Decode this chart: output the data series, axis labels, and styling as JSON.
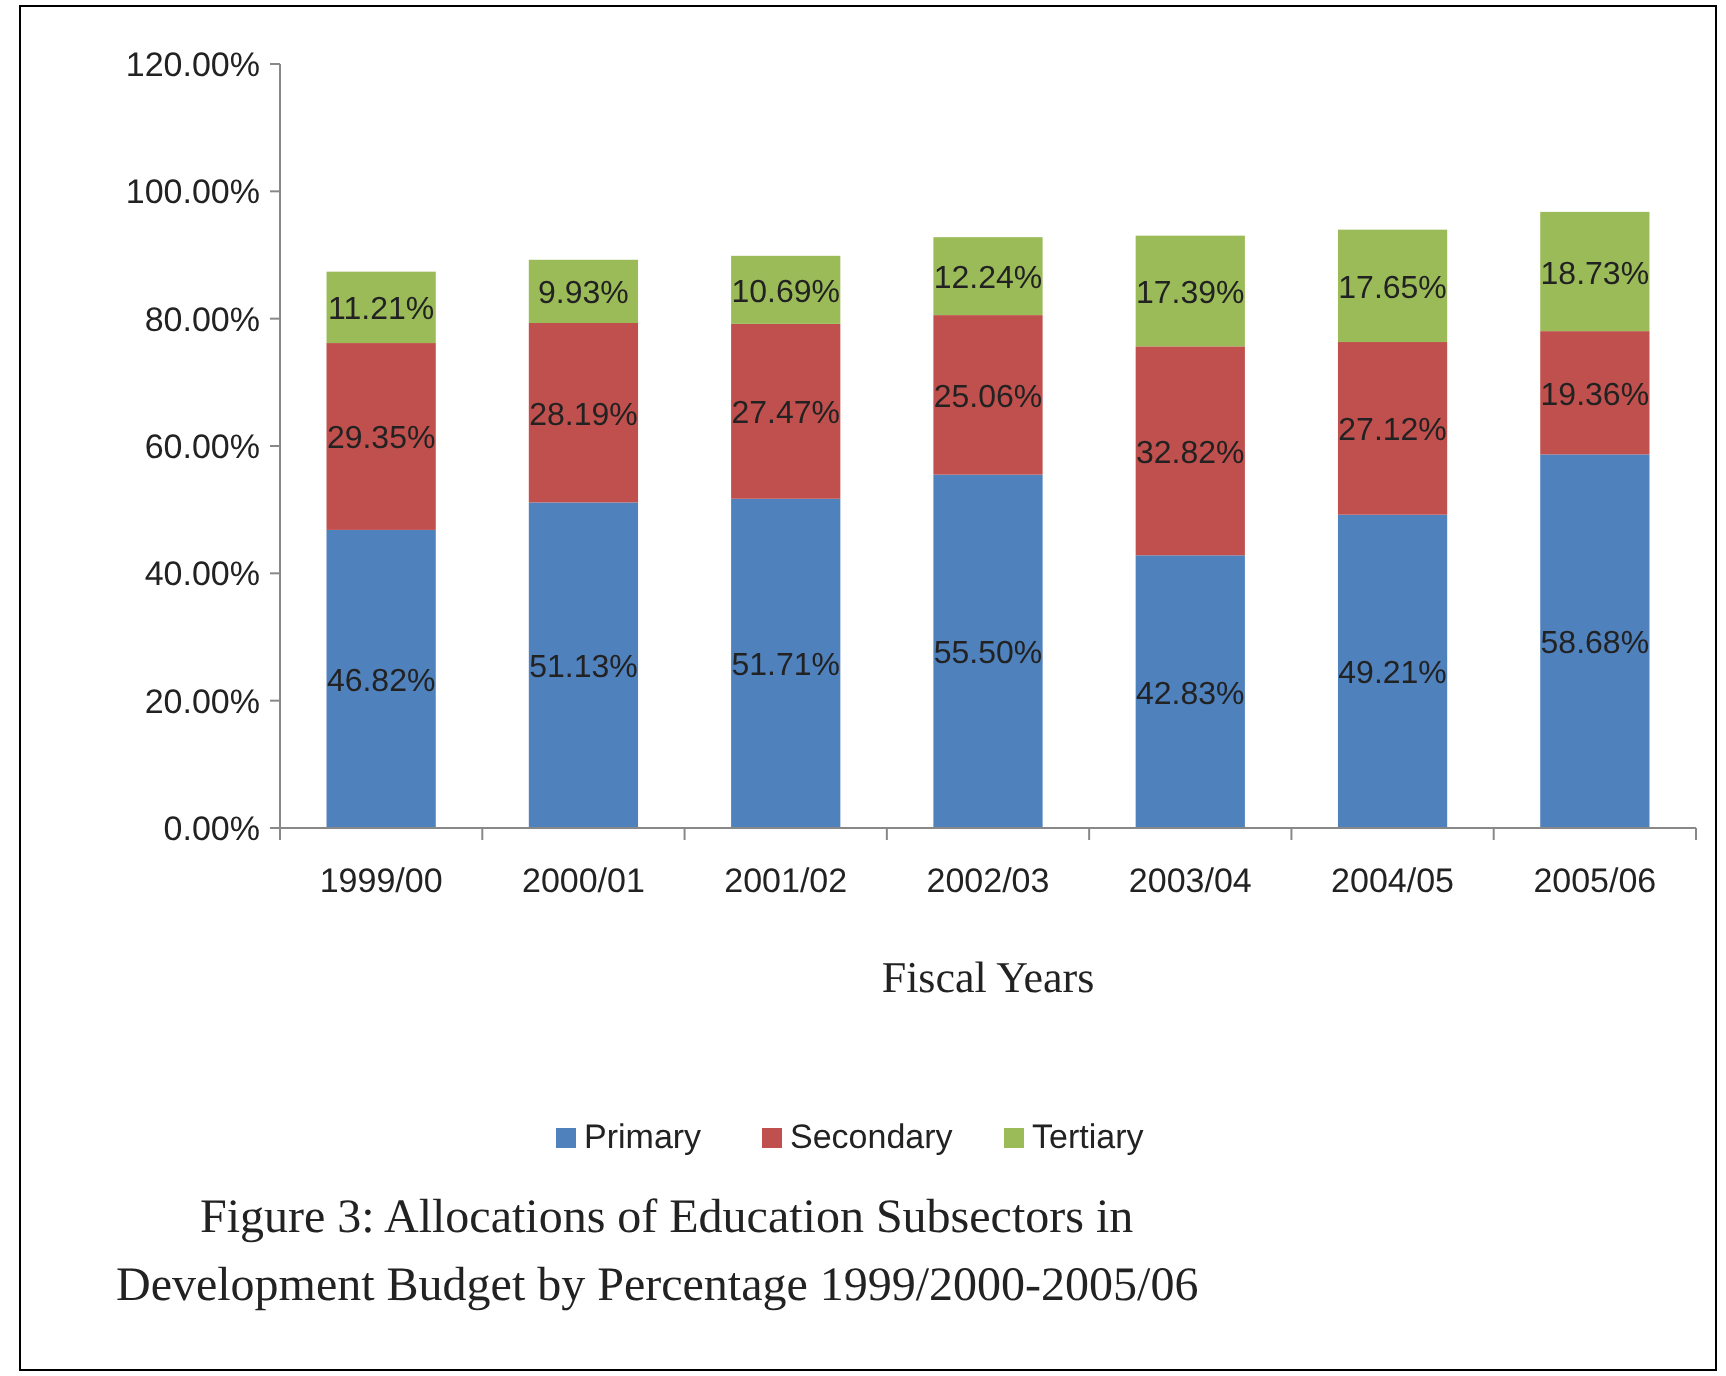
{
  "chart_data": {
    "type": "bar",
    "stacked": true,
    "title": "Figure 3: Allocations of Education Subsectors in Development Budget by Percentage 1999/2000-2005/06",
    "xlabel": "Fiscal Years",
    "categories": [
      "1999/00",
      "2000/01",
      "2001/02",
      "2002/03",
      "2003/04",
      "2004/05",
      "2005/06"
    ],
    "series": [
      {
        "name": "Primary",
        "color": "#4f81bd",
        "values": [
          46.82,
          51.13,
          51.71,
          55.5,
          42.83,
          49.21,
          58.68
        ],
        "value_labels": [
          "46.82%",
          "51.13%",
          "51.71%",
          "55.50%",
          "42.83%",
          "49.21%",
          "58.68%"
        ]
      },
      {
        "name": "Secondary",
        "color": "#c0504d",
        "values": [
          29.35,
          28.19,
          27.47,
          25.06,
          32.82,
          27.12,
          19.36
        ],
        "value_labels": [
          "29.35%",
          "28.19%",
          "27.47%",
          "25.06%",
          "32.82%",
          "27.12%",
          "19.36%"
        ]
      },
      {
        "name": "Tertiary",
        "color": "#9bbb59",
        "values": [
          11.21,
          9.93,
          10.69,
          12.24,
          17.39,
          17.65,
          18.73
        ],
        "value_labels": [
          "11.21%",
          "9.93%",
          "10.69%",
          "12.24%",
          "17.39%",
          "17.65%",
          "18.73%"
        ]
      }
    ],
    "ylim": [
      0,
      120
    ],
    "yticks": [
      {
        "value": 0,
        "label": "0.00%"
      },
      {
        "value": 20,
        "label": "20.00%"
      },
      {
        "value": 40,
        "label": "40.00%"
      },
      {
        "value": 60,
        "label": "60.00%"
      },
      {
        "value": 80,
        "label": "80.00%"
      },
      {
        "value": 100,
        "label": "100.00%"
      },
      {
        "value": 120,
        "label": "120.00%"
      }
    ],
    "legend": "bottom"
  }
}
